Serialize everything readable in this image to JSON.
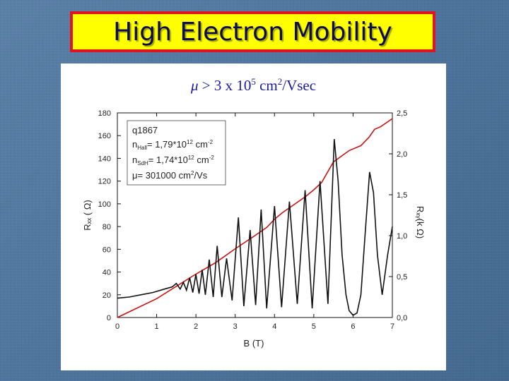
{
  "slide": {
    "title": "High Electron Mobility",
    "subtitle": {
      "symbol": "μ",
      "prefix": " > 3 x 10",
      "exponent": "5",
      "unit_base": " cm",
      "unit_exp": "2",
      "unit_suffix": "/Vsec"
    }
  },
  "colors": {
    "title_bg": "#ffff00",
    "title_border": "#e0141e",
    "title_text": "#0b0b5a",
    "subtitle_text": "#1a1aa0",
    "rxx_line": "#111111",
    "rxy_line": "#cc1111"
  },
  "chart_data": {
    "type": "line",
    "xlabel": "B (T)",
    "ylabel_left": "Rₓₓ ( Ω)",
    "ylabel_right": "Rₓᵧ(k Ω)",
    "xlim": [
      0,
      7
    ],
    "ylim_left": [
      0,
      180
    ],
    "ylim_right": [
      0,
      2.5
    ],
    "xticks": [
      "0",
      "1",
      "2",
      "3",
      "4",
      "5",
      "6",
      "7"
    ],
    "yticks_left": [
      "0",
      "20",
      "40",
      "60",
      "80",
      "100",
      "120",
      "140",
      "160",
      "180"
    ],
    "yticks_right": [
      "0,0",
      "0,5",
      "1,0",
      "1,5",
      "2,0",
      "2,5"
    ],
    "legend": {
      "sample": "q1867",
      "n_hall_label": "n",
      "n_hall_sub": "Hall",
      "n_hall_value": "= 1,79*10",
      "n_hall_exp": "12",
      "n_hall_unit": " cm",
      "n_hall_unit_exp": "-2",
      "n_sdh_label": "n",
      "n_sdh_sub": "SdH",
      "n_sdh_value": "= 1,74*10",
      "n_sdh_exp": "12",
      "n_sdh_unit": " cm",
      "n_sdh_unit_exp": "-2",
      "mu_label": "μ= 301000 cm",
      "mu_exp": "2",
      "mu_unit": "/Vs"
    },
    "series": [
      {
        "axis": "left",
        "x": [
          0,
          0.3,
          0.6,
          0.9,
          1.2,
          1.4,
          1.5,
          1.6,
          1.68,
          1.76,
          1.84,
          1.92,
          2.0,
          2.08,
          2.16,
          2.24,
          2.34,
          2.44,
          2.54,
          2.66,
          2.78,
          2.92,
          3.08,
          3.22,
          3.38,
          3.52,
          3.66,
          3.8,
          4.0,
          4.18,
          4.38,
          4.58,
          4.78,
          4.96,
          5.16,
          5.36,
          5.52,
          5.62,
          5.72,
          5.82,
          5.9,
          6.0,
          6.1,
          6.2,
          6.3,
          6.42,
          6.52,
          6.62,
          6.74,
          6.88,
          7.0
        ],
        "y": [
          17,
          18,
          20,
          22,
          25,
          27,
          30,
          25,
          31,
          24,
          35,
          22,
          38,
          21,
          42,
          20,
          51,
          18,
          63,
          18,
          52,
          15,
          88,
          10,
          77,
          11,
          95,
          8,
          98,
          9,
          102,
          12,
          112,
          8,
          120,
          12,
          157,
          120,
          55,
          20,
          6,
          2,
          4,
          20,
          70,
          128,
          110,
          55,
          20,
          55,
          80
        ]
      },
      {
        "axis": "right",
        "x": [
          0,
          1.0,
          2.0,
          2.5,
          3.0,
          3.5,
          3.8,
          4.0,
          4.2,
          4.5,
          4.8,
          5.0,
          5.2,
          5.5,
          5.9,
          6.2,
          6.4,
          6.55,
          6.7,
          7.0
        ],
        "y": [
          0.0,
          0.23,
          0.53,
          0.67,
          0.84,
          1.0,
          1.1,
          1.2,
          1.28,
          1.38,
          1.48,
          1.56,
          1.65,
          1.9,
          2.04,
          2.1,
          2.2,
          2.3,
          2.33,
          2.43
        ]
      }
    ]
  }
}
